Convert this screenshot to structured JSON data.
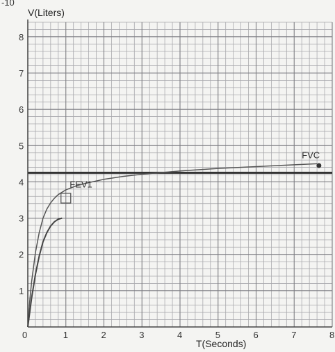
{
  "chart_data": {
    "type": "line",
    "corner_text": "-10",
    "ylabel": "V(Liters)",
    "xlabel": "T(Seconds)",
    "xlim": [
      0,
      8
    ],
    "ylim": [
      0,
      8.4
    ],
    "x_ticks": [
      "0",
      "1",
      "2",
      "3",
      "4",
      "5",
      "6",
      "7",
      "8"
    ],
    "y_ticks": [
      "1",
      "2",
      "3",
      "4",
      "5",
      "6",
      "7",
      "8"
    ],
    "grid": true,
    "minor_grid_step": 0.2,
    "series": [
      {
        "x": [
          0,
          0.05,
          0.1,
          0.2,
          0.3,
          0.4,
          0.5,
          0.6,
          0.7,
          0.8,
          1.0,
          1.3,
          1.6,
          2.0,
          2.5,
          3.0,
          4.0,
          5.0,
          6.0,
          7.0,
          7.6
        ],
        "y": [
          0,
          0.7,
          1.25,
          2.05,
          2.6,
          3.0,
          3.25,
          3.42,
          3.55,
          3.65,
          3.78,
          3.9,
          3.98,
          4.07,
          4.15,
          4.21,
          4.3,
          4.37,
          4.42,
          4.47,
          4.5
        ]
      },
      {
        "x": [
          0,
          0.1,
          0.2,
          0.3,
          0.4,
          0.5,
          0.6,
          0.7,
          0.8,
          0.9
        ],
        "y": [
          0,
          0.8,
          1.45,
          1.95,
          2.35,
          2.6,
          2.78,
          2.9,
          2.97,
          3.0
        ]
      }
    ],
    "horizontal_line": {
      "y": 4.25
    },
    "annotations": [
      {
        "text": "FEV1",
        "x": 1.1,
        "y": 3.85,
        "marker": "square",
        "marker_x": 1.0,
        "marker_y": 3.55
      },
      {
        "text": "FVC",
        "x": 7.2,
        "y": 4.65,
        "marker": "dot",
        "marker_x": 7.65,
        "marker_y": 4.45
      }
    ]
  }
}
